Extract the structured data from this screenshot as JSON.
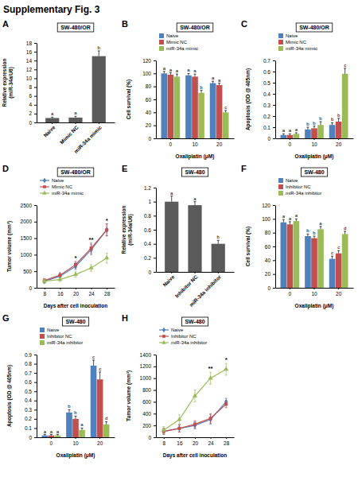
{
  "title": "Supplementary Fig. 3",
  "chart_data": [
    {
      "panel": "A",
      "type": "bar",
      "title": "SW-480/OR",
      "ylabel": [
        "Relative expression",
        "(miR-34a/U6)"
      ],
      "categories": [
        "Naive",
        "Mimic NC",
        "miR-34a mimic"
      ],
      "values": [
        1,
        1.1,
        15
      ],
      "errors": [
        0.2,
        0.3,
        1.2
      ],
      "letters": [
        "a",
        "a",
        "b"
      ],
      "color": "#5a5a5a",
      "ylim": [
        0,
        18
      ],
      "yticks": [
        0,
        2,
        4,
        6,
        8,
        10,
        12,
        14,
        16,
        18
      ]
    },
    {
      "panel": "B",
      "type": "bar",
      "title": "SW-480/OR",
      "ylabel": [
        "Cell survival (%)"
      ],
      "xlabel": "Oxaliplatin (μM)",
      "categories": [
        "0",
        "10",
        "20"
      ],
      "series": [
        {
          "name": "Naive",
          "color": "#4f81bd",
          "values": [
            100,
            97,
            85
          ],
          "errors": [
            3,
            3,
            3
          ],
          "letters": [
            "a",
            "a",
            "a"
          ]
        },
        {
          "name": "Mimic NC",
          "color": "#c0504d",
          "values": [
            98,
            95,
            82
          ],
          "errors": [
            3,
            4,
            3
          ],
          "letters": [
            "a",
            "a",
            "a"
          ]
        },
        {
          "name": "miR-34a mimic",
          "color": "#9bbb59",
          "values": [
            95,
            70,
            40
          ],
          "errors": [
            4,
            4,
            3
          ],
          "letters": [
            "a",
            "b",
            "c"
          ]
        }
      ],
      "ylim": [
        0,
        120
      ],
      "yticks": [
        0,
        20,
        40,
        60,
        80,
        100,
        120
      ],
      "legend": "top"
    },
    {
      "panel": "C",
      "type": "bar",
      "title": "SW-480/OR",
      "ylabel": [
        "Apoptosis (OD @ 405nm)"
      ],
      "xlabel": "Oxaliplatin (μM)",
      "categories": [
        "0",
        "10",
        "20"
      ],
      "series": [
        {
          "name": "Naive",
          "color": "#4f81bd",
          "values": [
            0.03,
            0.08,
            0.12
          ],
          "errors": [
            0.01,
            0.02,
            0.02
          ],
          "letters": [
            "a",
            "b",
            "b"
          ]
        },
        {
          "name": "Mimic NC",
          "color": "#c0504d",
          "values": [
            0.03,
            0.09,
            0.15
          ],
          "errors": [
            0.01,
            0.02,
            0.03
          ],
          "letters": [
            "a",
            "b",
            "b"
          ]
        },
        {
          "name": "miR-34a mimic",
          "color": "#9bbb59",
          "values": [
            0.04,
            0.12,
            0.58
          ],
          "errors": [
            0.01,
            0.03,
            0.05
          ],
          "letters": [
            "a",
            "b",
            "c"
          ]
        }
      ],
      "ylim": [
        0,
        0.7
      ],
      "yticks": [
        0,
        0.1,
        0.2,
        0.3,
        0.4,
        0.5,
        0.6,
        0.7
      ],
      "legend": "top"
    },
    {
      "panel": "D",
      "type": "line",
      "title": "SW-480/OR",
      "ylabel": [
        "Tumor volume (mm³)"
      ],
      "xlabel": "Days after cell inoculation",
      "categories": [
        "8",
        "16",
        "20",
        "24",
        "28"
      ],
      "series": [
        {
          "name": "Naive",
          "color": "#4f81bd",
          "marker": "diamond",
          "values": [
            200,
            350,
            650,
            1150,
            1750
          ],
          "errors": [
            60,
            80,
            100,
            150,
            180
          ]
        },
        {
          "name": "Mimic NC",
          "color": "#c0504d",
          "marker": "square",
          "values": [
            220,
            380,
            700,
            1200,
            1750
          ],
          "errors": [
            60,
            80,
            100,
            150,
            180
          ]
        },
        {
          "name": "miR-34a mimic",
          "color": "#9bbb59",
          "marker": "triangle",
          "values": [
            200,
            250,
            400,
            600,
            900
          ],
          "errors": [
            50,
            60,
            80,
            100,
            150
          ]
        }
      ],
      "annotations": [
        {
          "category": "20",
          "text": "*"
        },
        {
          "category": "24",
          "text": "**"
        },
        {
          "category": "28",
          "text": "*"
        }
      ],
      "ylim": [
        0,
        2500
      ],
      "yticks": [
        0,
        500,
        1000,
        1500,
        2000,
        2500
      ],
      "legend": "top"
    },
    {
      "panel": "E",
      "type": "bar",
      "title": "SW-480",
      "ylabel": [
        "Relative expression",
        "(miR-34a/U6)"
      ],
      "categories": [
        "Naive",
        "Inhibitor NC",
        "miR-34a inhibitor"
      ],
      "values": [
        1.0,
        0.95,
        0.4
      ],
      "errors": [
        0.08,
        0.05,
        0.05
      ],
      "letters": [
        "a",
        "a",
        "b"
      ],
      "color": "#5a5a5a",
      "ylim": [
        0,
        1.2
      ],
      "yticks": [
        0,
        0.2,
        0.4,
        0.6,
        0.8,
        1,
        1.2
      ]
    },
    {
      "panel": "F",
      "type": "bar",
      "title": "SW-480",
      "ylabel": [
        "Cell survival (%)"
      ],
      "xlabel": "Oxaliplatin (μM)",
      "categories": [
        "0",
        "10",
        "20"
      ],
      "series": [
        {
          "name": "Naive",
          "color": "#4f81bd",
          "values": [
            95,
            75,
            42
          ],
          "errors": [
            4,
            3,
            4
          ],
          "letters": [
            "a",
            "b",
            "c"
          ]
        },
        {
          "name": "Inhibitor NC",
          "color": "#c0504d",
          "values": [
            92,
            72,
            50
          ],
          "errors": [
            4,
            3,
            4
          ],
          "letters": [
            "a",
            "b",
            "c"
          ]
        },
        {
          "name": "miR-34a inhibitor",
          "color": "#9bbb59",
          "values": [
            97,
            85,
            78
          ],
          "errors": [
            3,
            4,
            4
          ],
          "letters": [
            "a",
            "a",
            "d"
          ]
        }
      ],
      "ylim": [
        0,
        120
      ],
      "yticks": [
        0,
        20,
        40,
        60,
        80,
        100,
        120
      ],
      "legend": "top"
    },
    {
      "panel": "G",
      "type": "bar",
      "title": "SW-480",
      "ylabel": [
        "Apoptosis (OD @ 405nm)"
      ],
      "xlabel": "Oxaliplatin (μM)",
      "categories": [
        "0",
        "10",
        "20"
      ],
      "series": [
        {
          "name": "Naive",
          "color": "#4f81bd",
          "values": [
            0.02,
            0.27,
            0.78
          ],
          "errors": [
            0.01,
            0.03,
            0.06
          ],
          "letters": [
            "a",
            "b",
            "c"
          ]
        },
        {
          "name": "Inhibitor NC",
          "color": "#c0504d",
          "values": [
            0.02,
            0.2,
            0.63
          ],
          "errors": [
            0.01,
            0.03,
            0.08
          ],
          "letters": [
            "a",
            "b",
            "c"
          ]
        },
        {
          "name": "miR-34a inhibitor",
          "color": "#9bbb59",
          "values": [
            0.02,
            0.08,
            0.14
          ],
          "errors": [
            0.01,
            0.02,
            0.03
          ],
          "letters": [
            "a",
            "a",
            "d"
          ]
        }
      ],
      "ylim": [
        0,
        0.9
      ],
      "yticks": [
        0,
        0.1,
        0.2,
        0.3,
        0.4,
        0.5,
        0.6,
        0.7,
        0.8,
        0.9
      ],
      "legend": "top"
    },
    {
      "panel": "H",
      "type": "line",
      "title": "SW-480",
      "ylabel": [
        "Tumor volume (mm³)"
      ],
      "xlabel": "Days after cell inoculation",
      "categories": [
        "8",
        "16",
        "20",
        "24",
        "28"
      ],
      "series": [
        {
          "name": "Naive",
          "color": "#4f81bd",
          "marker": "diamond",
          "values": [
            100,
            150,
            200,
            300,
            600
          ],
          "errors": [
            50,
            60,
            60,
            80,
            60
          ]
        },
        {
          "name": "Inhibitor NC",
          "color": "#c0504d",
          "marker": "square",
          "values": [
            100,
            150,
            220,
            320,
            560
          ],
          "errors": [
            50,
            60,
            60,
            80,
            60
          ]
        },
        {
          "name": "miR-34a inhibitor",
          "color": "#9bbb59",
          "marker": "triangle",
          "values": [
            120,
            300,
            700,
            1000,
            1150
          ],
          "errors": [
            60,
            80,
            100,
            100,
            100
          ]
        }
      ],
      "annotations": [
        {
          "category": "24",
          "text": "**"
        },
        {
          "category": "28",
          "text": "*"
        }
      ],
      "ylim": [
        0,
        1400
      ],
      "yticks": [
        0,
        200,
        400,
        600,
        800,
        1000,
        1200,
        1400
      ],
      "legend": "top"
    }
  ]
}
